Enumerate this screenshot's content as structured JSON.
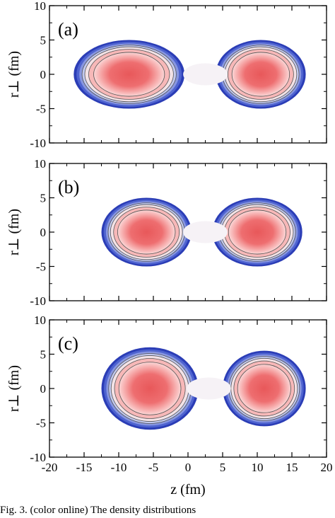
{
  "chart_data": [
    {
      "type": "contour",
      "panel_label": "(a)",
      "xlabel": "",
      "ylabel": "r⊥ (fm)",
      "xlim": [
        -20,
        20
      ],
      "ylim": [
        -10,
        10
      ],
      "xticks": [],
      "yticks": [
        -10,
        -5,
        0,
        5,
        10
      ],
      "fragments": [
        {
          "center_z": -8.5,
          "semi_axis_z": 8.0,
          "semi_axis_r": 5.0
        },
        {
          "center_z": 10.5,
          "semi_axis_z": 6.5,
          "semi_axis_r": 5.0
        }
      ],
      "neck_z": 2.5
    },
    {
      "type": "contour",
      "panel_label": "(b)",
      "xlabel": "",
      "ylabel": "r⊥ (fm)",
      "xlim": [
        -20,
        20
      ],
      "ylim": [
        -10,
        10
      ],
      "xticks": [],
      "yticks": [
        -10,
        -5,
        0,
        5,
        10
      ],
      "fragments": [
        {
          "center_z": -6.0,
          "semi_axis_z": 6.5,
          "semi_axis_r": 5.0
        },
        {
          "center_z": 10.0,
          "semi_axis_z": 6.5,
          "semi_axis_r": 5.0
        }
      ],
      "neck_z": 2.5
    },
    {
      "type": "contour",
      "panel_label": "(c)",
      "xlabel": "z (fm)",
      "ylabel": "r⊥ (fm)",
      "xlim": [
        -20,
        20
      ],
      "ylim": [
        -10,
        10
      ],
      "xticks": [
        -20,
        -15,
        -10,
        -5,
        0,
        5,
        10,
        15,
        20
      ],
      "yticks": [
        -10,
        -5,
        0,
        5,
        10
      ],
      "fragments": [
        {
          "center_z": -5.5,
          "semi_axis_z": 7.0,
          "semi_axis_r": 6.0
        },
        {
          "center_z": 11.0,
          "semi_axis_z": 6.0,
          "semi_axis_r": 5.5
        }
      ],
      "neck_z": 3.0
    }
  ],
  "caption": "Fig. 3.    (color online) The density distributions"
}
